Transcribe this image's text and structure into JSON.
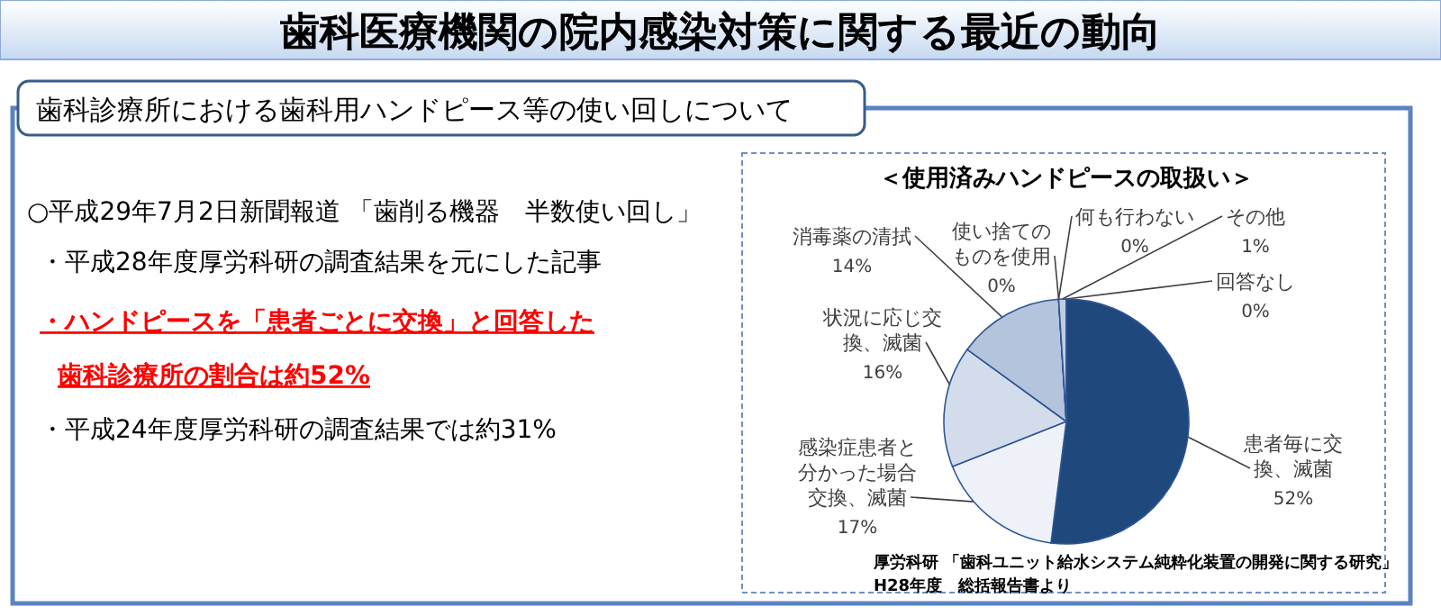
{
  "chart_data": {
    "type": "pie",
    "title": "歯科医療機関の院内感染対策に関する最近の動向",
    "subtitle": "歯科診療所における歯科用ハンドピース等の使い回しについて",
    "categories": [
      "患者毎に交換、滅菌",
      "感染症患者と分かった場合交換、滅菌",
      "状況に応じ交換、滅菌",
      "消毒薬の清拭",
      "使い捨てのものを使用",
      "何も行わない",
      "その他",
      "回答なし"
    ],
    "values": [
      52,
      17,
      16,
      14,
      0,
      0,
      1,
      0
    ],
    "value_labels": [
      "52%",
      "17%",
      "16%",
      "14%",
      "0%",
      "0%",
      "1%",
      "0%"
    ],
    "colors": [
      "#1f497d",
      "#eef2f8",
      "#d3dcea",
      "#b4c4dc",
      "#9fb3d1",
      "#8ea5c7",
      "#c0cde0",
      "#7f99bf"
    ],
    "annotations": [
      "＜使用済みハンドピースの取扱い＞",
      "○平成29年7月2日新聞報道 「歯削る機器　半数使い回し」",
      "・平成28年度厚労科研の調査結果を元にした記事",
      "・ハンドピースを「患者ごとに交換」と回答した",
      "歯科診療所の割合は約52%",
      "・平成24年度厚労科研の調査結果では約31%",
      "厚労科研 「歯科ユニット給水システム純粋化装置の開発に関する研究」",
      "H28年度　総括報告書より"
    ]
  }
}
